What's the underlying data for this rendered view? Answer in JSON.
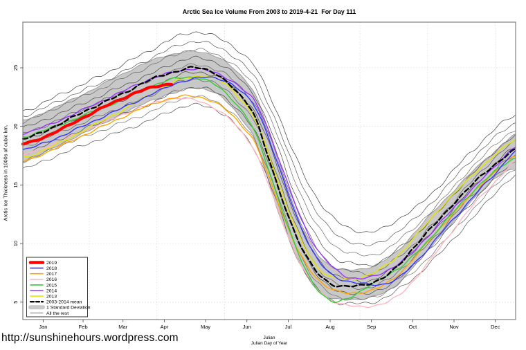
{
  "page": {
    "url_text": "http://sunshinehours.wordpress.com"
  },
  "chart_data": {
    "type": "line",
    "title": "Arctic Sea Ice Volume From 2003 to 2019-4-21  For Day 111",
    "ylabel": "Arctic Ice Thickness in 1000s of cubic km.",
    "xlabel_line1": "Julian",
    "xlabel_line2": "Julian Day of Year",
    "x_unit": "julian_day_of_year",
    "xlim": [
      1,
      365
    ],
    "ylim": [
      3.5,
      28.9
    ],
    "y_ticks": [
      5,
      10,
      15,
      20,
      25
    ],
    "x_month_labels": [
      "Jan",
      "Feb",
      "Mar",
      "Apr",
      "May",
      "Jun",
      "Jul",
      "Aug",
      "Sep",
      "Oct",
      "Nov",
      "Dec"
    ],
    "x_month_center_days": [
      16,
      45.5,
      75,
      105.5,
      136,
      166.5,
      197,
      228,
      258.5,
      289,
      319.5,
      350
    ],
    "x_gridline_days": [
      50,
      100,
      150,
      200,
      250,
      300,
      350
    ],
    "grid": "dotted-lightgray",
    "legend_position": "bottom-left",
    "colors": {
      "y2019": "#FF0000",
      "y2018": "#3333FF",
      "y2017": "#FFA500",
      "y2016": "#FFB6C1",
      "y2015": "#33CC33",
      "y2014": "#9933FF",
      "y2013": "#E6E600",
      "mean": "#000000",
      "band_fill": "#C8C8C8",
      "band_edge": "#8C8C8C",
      "rest": "#555555"
    },
    "band": {
      "name": "1 Standard Deviation",
      "days": [
        1,
        15,
        30,
        45,
        60,
        75,
        90,
        105,
        115,
        125,
        135,
        145,
        155,
        165,
        172,
        180,
        188,
        196,
        204,
        212,
        220,
        230,
        240,
        250,
        260,
        270,
        280,
        290,
        300,
        310,
        320,
        330,
        340,
        350,
        365
      ],
      "top": [
        20.5,
        21.1,
        21.9,
        22.7,
        23.6,
        24.5,
        25.3,
        26.0,
        26.2,
        26.4,
        26.3,
        25.9,
        25.1,
        24.0,
        22.9,
        20.5,
        17.6,
        14.9,
        12.4,
        10.4,
        8.9,
        8.0,
        7.75,
        7.8,
        8.1,
        8.7,
        9.6,
        10.9,
        12.2,
        13.4,
        14.6,
        15.8,
        16.9,
        17.9,
        19.3
      ],
      "bottom": [
        16.9,
        17.7,
        18.5,
        19.4,
        20.2,
        21.1,
        21.9,
        22.6,
        22.9,
        23.3,
        23.2,
        22.7,
        21.7,
        20.3,
        19.0,
        16.2,
        13.3,
        10.8,
        8.6,
        7.0,
        5.9,
        5.3,
        5.2,
        5.25,
        5.5,
        5.9,
        6.8,
        8.1,
        9.4,
        10.7,
        12.0,
        13.3,
        14.5,
        15.6,
        16.4
      ]
    },
    "series": [
      {
        "name": "2016",
        "color": "#FFB6C1",
        "width": 1.4,
        "days": [
          1,
          15,
          30,
          45,
          60,
          75,
          90,
          105,
          115,
          125,
          135,
          145,
          155,
          165,
          172,
          180,
          188,
          196,
          204,
          212,
          220,
          230,
          240,
          250,
          260,
          270,
          280,
          290,
          300,
          310,
          320,
          330,
          340,
          350,
          365
        ],
        "values": [
          17.6,
          18.1,
          18.8,
          19.6,
          20.3,
          21.0,
          21.7,
          22.2,
          22.4,
          22.3,
          22.0,
          21.4,
          20.5,
          19.2,
          18.0,
          15.8,
          13.3,
          10.9,
          8.8,
          7.1,
          5.9,
          5.1,
          4.75,
          4.6,
          4.7,
          5.0,
          5.7,
          6.9,
          8.3,
          9.8,
          11.3,
          12.8,
          14.1,
          15.3,
          17.0
        ]
      },
      {
        "name": "2017",
        "color": "#FFA500",
        "width": 1.4,
        "days": [
          1,
          15,
          30,
          45,
          60,
          75,
          90,
          105,
          115,
          125,
          135,
          145,
          155,
          165,
          172,
          180,
          188,
          196,
          204,
          212,
          220,
          230,
          240,
          250,
          260,
          270,
          280,
          290,
          300,
          310,
          320,
          330,
          340,
          350,
          365
        ],
        "values": [
          17.0,
          17.6,
          18.4,
          19.2,
          20.0,
          20.8,
          21.6,
          22.2,
          22.5,
          22.6,
          22.4,
          21.9,
          21.0,
          19.8,
          18.7,
          16.5,
          14.0,
          11.6,
          9.5,
          7.9,
          6.8,
          6.1,
          5.75,
          5.8,
          6.1,
          6.6,
          7.5,
          8.8,
          10.1,
          11.4,
          12.7,
          13.9,
          15.1,
          16.2,
          17.5
        ]
      },
      {
        "name": "2013",
        "color": "#E6E600",
        "width": 1.4,
        "days": [
          1,
          15,
          30,
          45,
          60,
          75,
          90,
          105,
          115,
          125,
          135,
          145,
          155,
          165,
          172,
          180,
          188,
          196,
          204,
          212,
          220,
          230,
          240,
          250,
          260,
          270,
          280,
          290,
          300,
          310,
          320,
          330,
          340,
          350,
          365
        ],
        "values": [
          17.3,
          17.9,
          18.7,
          19.6,
          20.5,
          21.4,
          22.4,
          23.3,
          23.9,
          24.2,
          24.3,
          24.0,
          23.2,
          21.9,
          20.7,
          18.5,
          15.8,
          13.2,
          10.9,
          9.1,
          7.8,
          7.1,
          6.95,
          7.1,
          7.5,
          8.2,
          9.2,
          10.5,
          11.8,
          13.1,
          14.3,
          15.5,
          16.6,
          17.6,
          18.9
        ]
      },
      {
        "name": "2015",
        "color": "#33CC33",
        "width": 1.4,
        "days": [
          1,
          15,
          30,
          45,
          60,
          75,
          90,
          105,
          115,
          125,
          135,
          145,
          155,
          165,
          172,
          180,
          188,
          196,
          204,
          212,
          220,
          230,
          240,
          250,
          260,
          270,
          280,
          290,
          300,
          310,
          320,
          330,
          340,
          350,
          365
        ],
        "values": [
          19.1,
          19.6,
          20.2,
          20.9,
          21.6,
          22.3,
          23.1,
          23.8,
          24.1,
          24.2,
          24.0,
          23.4,
          22.4,
          21.0,
          19.6,
          17.2,
          14.4,
          11.7,
          9.3,
          7.3,
          5.9,
          5.0,
          5.3,
          5.9,
          6.6,
          7.3,
          8.0,
          9.0,
          10.2,
          11.5,
          12.8,
          14.0,
          15.2,
          16.2,
          17.3
        ]
      },
      {
        "name": "2014",
        "color": "#9933FF",
        "width": 1.4,
        "days": [
          1,
          15,
          30,
          45,
          60,
          75,
          90,
          105,
          115,
          125,
          135,
          145,
          155,
          165,
          172,
          180,
          188,
          196,
          204,
          212,
          220,
          230,
          240,
          250,
          260,
          270,
          280,
          290,
          300,
          310,
          320,
          330,
          340,
          350,
          365
        ],
        "values": [
          19.4,
          19.9,
          20.6,
          21.4,
          22.2,
          23.0,
          23.8,
          24.4,
          24.7,
          24.9,
          24.8,
          24.5,
          23.9,
          23.0,
          22.2,
          20.4,
          17.9,
          15.3,
          12.9,
          10.8,
          9.2,
          8.0,
          7.2,
          7.0,
          7.2,
          7.7,
          8.4,
          9.4,
          10.6,
          11.9,
          13.1,
          14.3,
          15.5,
          16.6,
          18.3
        ]
      },
      {
        "name": "2018",
        "color": "#3333FF",
        "width": 1.4,
        "days": [
          1,
          15,
          30,
          45,
          60,
          75,
          90,
          105,
          115,
          125,
          135,
          145,
          155,
          165,
          172,
          180,
          188,
          196,
          204,
          212,
          220,
          230,
          240,
          250,
          260,
          270,
          280,
          290,
          300,
          310,
          320,
          330,
          340,
          350,
          365
        ],
        "values": [
          18.0,
          18.5,
          19.2,
          20.0,
          20.8,
          21.6,
          22.4,
          23.2,
          23.7,
          24.0,
          24.2,
          24.1,
          23.6,
          22.7,
          21.8,
          19.8,
          17.2,
          14.6,
          12.1,
          10.0,
          8.4,
          7.3,
          6.8,
          6.6,
          6.5,
          6.6,
          7.2,
          8.3,
          9.5,
          10.9,
          12.2,
          13.5,
          14.8,
          16.0,
          17.9
        ]
      },
      {
        "name": "2003-2014 mean",
        "color": "#000000",
        "width": 2.3,
        "dash": "7 4",
        "days": [
          1,
          15,
          30,
          45,
          60,
          75,
          90,
          105,
          115,
          125,
          135,
          145,
          155,
          165,
          172,
          180,
          188,
          196,
          204,
          212,
          220,
          230,
          240,
          250,
          260,
          270,
          280,
          290,
          300,
          310,
          320,
          330,
          340,
          350,
          365
        ],
        "values": [
          18.9,
          19.5,
          20.3,
          21.2,
          22.0,
          22.8,
          23.7,
          24.4,
          24.7,
          25.0,
          24.9,
          24.4,
          23.4,
          22.2,
          21.0,
          18.2,
          15.3,
          12.7,
          10.4,
          8.6,
          7.3,
          6.5,
          6.35,
          6.4,
          6.7,
          7.3,
          8.3,
          9.7,
          11.0,
          12.2,
          13.5,
          14.7,
          15.8,
          16.8,
          18.0
        ]
      },
      {
        "name": "2019",
        "color": "#FF0000",
        "width": 4.2,
        "days": [
          1,
          15,
          30,
          45,
          60,
          75,
          90,
          100,
          105,
          111
        ],
        "values": [
          18.5,
          19.0,
          19.8,
          20.7,
          21.6,
          22.4,
          23.1,
          23.4,
          23.55,
          23.6
        ]
      }
    ],
    "rest_lines": {
      "name": "All the rest",
      "control_days": [
        1,
        30,
        60,
        90,
        125,
        150,
        172,
        186,
        200,
        215,
        230,
        245,
        260,
        280,
        300,
        330,
        365
      ],
      "lines": [
        {
          "shade": "#3E3E3E",
          "values": [
            21.3,
            22.8,
            24.4,
            26.2,
            28.0,
            27.3,
            25.2,
            22.0,
            18.0,
            14.5,
            12.2,
            11.2,
            11.0,
            12.2,
            14.0,
            17.6,
            21.0
          ]
        },
        {
          "shade": "#565656",
          "values": [
            20.9,
            22.3,
            23.8,
            25.5,
            27.2,
            26.5,
            24.3,
            21.0,
            16.9,
            13.3,
            11.0,
            10.1,
            9.9,
            11.2,
            13.2,
            16.9,
            20.3
          ]
        },
        {
          "shade": "#6B6B6B",
          "values": [
            20.4,
            21.8,
            23.3,
            24.9,
            26.5,
            25.8,
            23.5,
            20.1,
            15.9,
            12.2,
            9.9,
            9.2,
            9.0,
            10.4,
            12.5,
            16.2,
            19.7
          ]
        },
        {
          "shade": "#484848",
          "values": [
            19.9,
            21.2,
            22.7,
            24.2,
            25.8,
            25.1,
            22.7,
            19.2,
            14.8,
            11.1,
            8.9,
            8.3,
            8.2,
            9.7,
            11.8,
            15.6,
            19.2
          ]
        },
        {
          "shade": "#5F5F5F",
          "values": [
            19.4,
            20.7,
            22.2,
            23.6,
            25.2,
            24.5,
            22.0,
            18.4,
            13.9,
            10.2,
            8.1,
            7.6,
            7.5,
            9.0,
            11.2,
            15.0,
            18.7
          ]
        },
        {
          "shade": "#424242",
          "values": [
            18.9,
            20.2,
            21.6,
            23.0,
            24.6,
            23.9,
            21.3,
            17.6,
            13.0,
            9.4,
            7.4,
            6.9,
            6.9,
            8.4,
            10.6,
            14.4,
            18.2
          ]
        },
        {
          "shade": "#606060",
          "values": [
            18.3,
            19.6,
            21.0,
            22.4,
            24.0,
            23.2,
            20.5,
            16.8,
            12.2,
            8.6,
            6.7,
            6.3,
            6.3,
            7.8,
            10.0,
            13.8,
            17.6
          ]
        },
        {
          "shade": "#4C4C4C",
          "values": [
            17.7,
            19.0,
            20.4,
            21.7,
            23.3,
            22.5,
            19.7,
            16.0,
            11.4,
            7.9,
            6.1,
            5.8,
            5.8,
            7.2,
            9.4,
            13.2,
            17.0
          ]
        },
        {
          "shade": "#6F6F6F",
          "values": [
            17.1,
            18.4,
            19.7,
            21.0,
            22.5,
            21.7,
            18.9,
            15.2,
            10.6,
            7.2,
            5.6,
            5.3,
            5.4,
            6.7,
            8.8,
            12.5,
            16.4
          ]
        },
        {
          "shade": "#525252",
          "values": [
            16.4,
            17.7,
            19.0,
            20.3,
            21.8,
            21.0,
            18.1,
            14.4,
            9.8,
            6.6,
            5.1,
            4.9,
            5.0,
            6.2,
            8.2,
            11.8,
            15.8
          ]
        }
      ]
    },
    "legend": [
      {
        "label": "2019",
        "style": "thick",
        "color": "#FF0000"
      },
      {
        "label": "2018",
        "style": "line",
        "color": "#3333FF"
      },
      {
        "label": "2017",
        "style": "line",
        "color": "#FFA500"
      },
      {
        "label": "2016",
        "style": "line",
        "color": "#FFB6C1"
      },
      {
        "label": "2015",
        "style": "line",
        "color": "#33CC33"
      },
      {
        "label": "2014",
        "style": "line",
        "color": "#9933FF"
      },
      {
        "label": "2013",
        "style": "line",
        "color": "#E6E600"
      },
      {
        "label": "2003-2014 mean",
        "style": "dashed",
        "color": "#000000"
      },
      {
        "label": "1 Standard Deviation",
        "style": "band",
        "color": "#C8C8C8"
      },
      {
        "label": "All the rest",
        "style": "thin",
        "color": "#555555"
      }
    ]
  }
}
